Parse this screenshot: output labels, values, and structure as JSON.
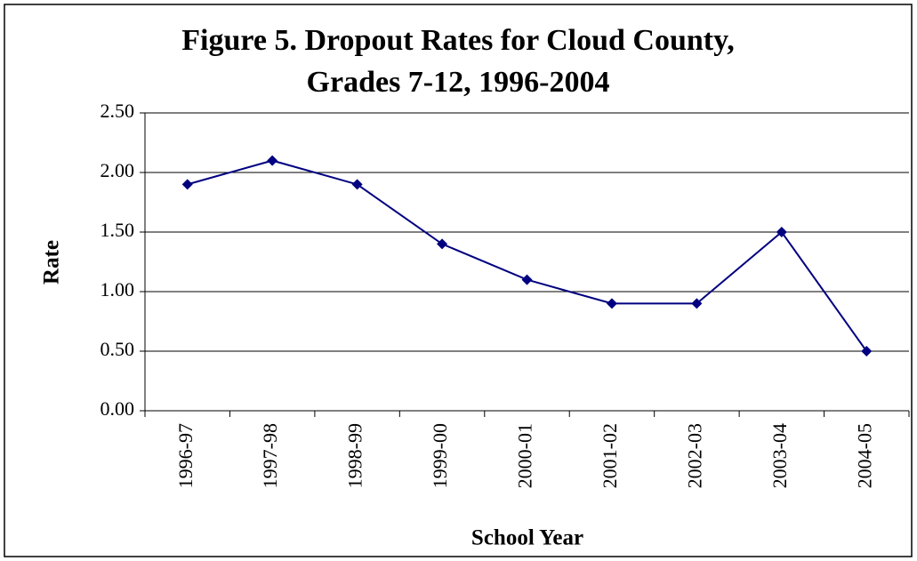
{
  "chart_data": {
    "type": "line",
    "title": [
      "Figure 5. Dropout Rates for Cloud County,",
      "Grades 7-12, 1996-2004"
    ],
    "x_label": "School Year",
    "y_label": "Rate",
    "categories": [
      "1996-97",
      "1997-98",
      "1998-99",
      "1999-00",
      "2000-01",
      "2001-02",
      "2002-03",
      "2003-04",
      "2004-05"
    ],
    "series": [
      {
        "name": "Rate",
        "color": "#000080",
        "values": [
          1.9,
          2.1,
          1.9,
          1.4,
          1.1,
          0.9,
          0.9,
          1.5,
          0.5
        ]
      }
    ],
    "ylim": [
      0,
      2.5
    ],
    "yticks": [
      {
        "value": 0,
        "label": "0.00"
      },
      {
        "value": 0.5,
        "label": "0.50"
      },
      {
        "value": 1,
        "label": "1.00"
      },
      {
        "value": 1.5,
        "label": "1.50"
      },
      {
        "value": 2,
        "label": "2.00"
      },
      {
        "value": 2.5,
        "label": "2.50"
      }
    ],
    "grid": true
  }
}
